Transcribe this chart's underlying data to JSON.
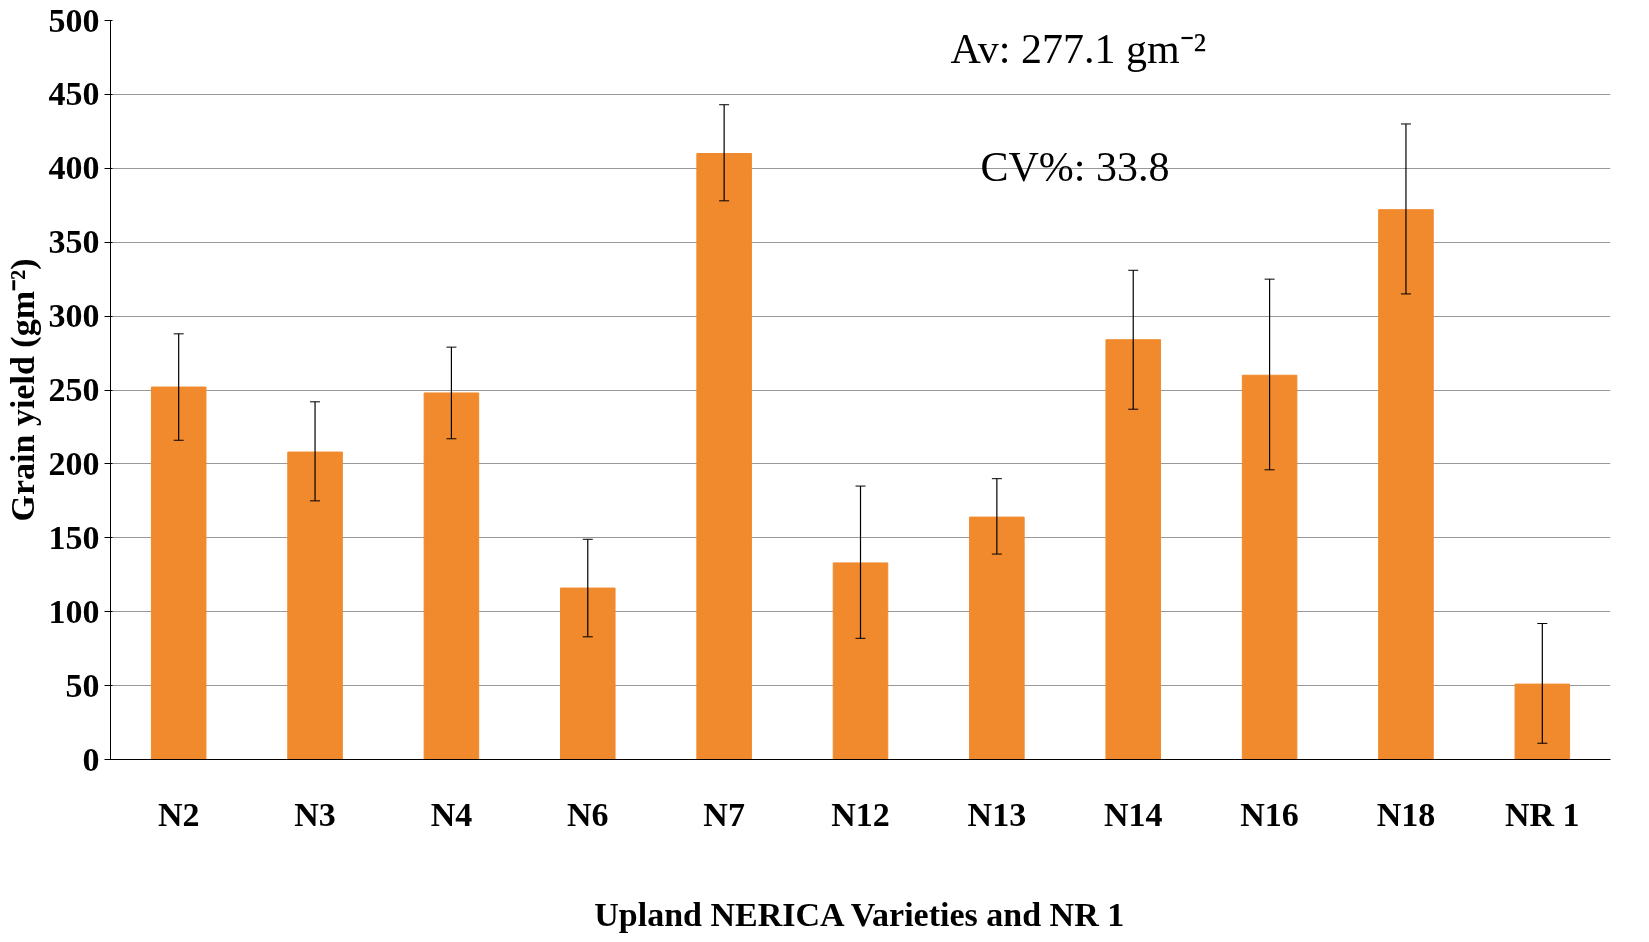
{
  "chart_data": {
    "type": "bar",
    "xlabel": "Upland NERICA Varieties and NR 1",
    "ylabel": "Grain yield (gm⁻²)",
    "categories": [
      "N2",
      "N3",
      "N4",
      "N6",
      "N7",
      "N12",
      "N13",
      "N14",
      "N16",
      "N18",
      "NR 1"
    ],
    "values": [
      252,
      208,
      248,
      116,
      410,
      133,
      164,
      284,
      260,
      372,
      51
    ],
    "errors": [
      [
        216,
        288
      ],
      [
        175,
        242
      ],
      [
        217,
        279
      ],
      [
        83,
        149
      ],
      [
        378,
        443
      ],
      [
        82,
        185
      ],
      [
        139,
        190
      ],
      [
        237,
        331
      ],
      [
        196,
        325
      ],
      [
        315,
        430
      ],
      [
        11,
        92
      ]
    ],
    "color": "#f08a2c",
    "ylim": [
      0,
      500
    ],
    "yticks": [
      0,
      50,
      100,
      150,
      200,
      250,
      300,
      350,
      400,
      450,
      500
    ],
    "grid": "y",
    "annotations": [
      "Av: 277.1 gm⁻²",
      "CV%: 33.8"
    ]
  }
}
